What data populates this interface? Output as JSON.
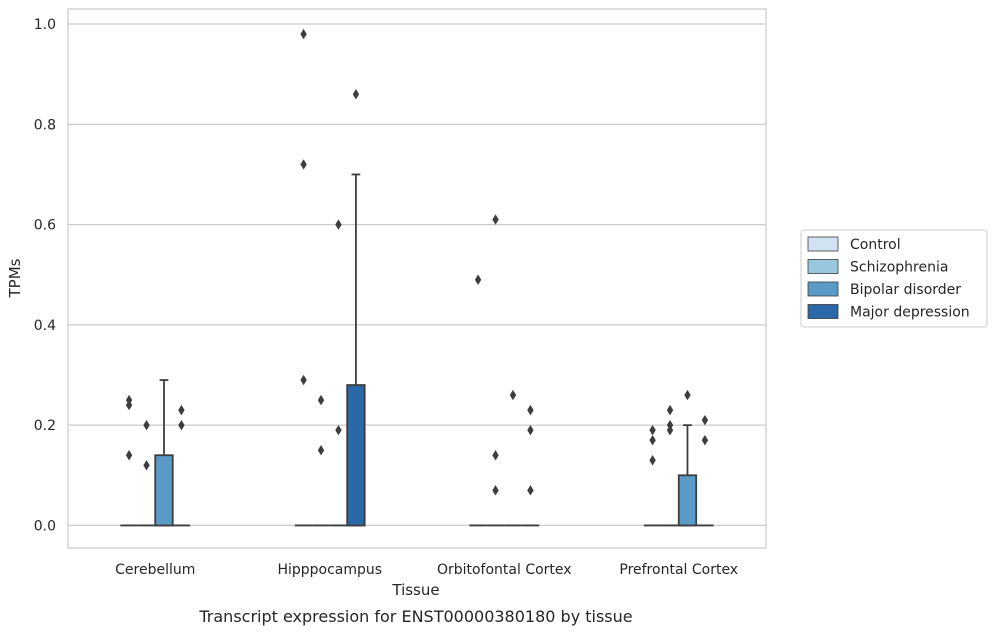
{
  "chart_data": {
    "type": "box",
    "title": "",
    "caption": "Transcript expression for ENST00000380180 by tissue",
    "xlabel": "Tissue",
    "ylabel": "TPMs",
    "ylim": [
      -0.045,
      1.03
    ],
    "yticks": [
      "0.0",
      "0.2",
      "0.4",
      "0.6",
      "0.8",
      "1.0"
    ],
    "categories": [
      "Cerebellum",
      "Hipppocampus",
      "Orbitofontal Cortex",
      "Prefrontal Cortex"
    ],
    "legend_position": "right",
    "grid": true,
    "series": [
      {
        "name": "Control",
        "color": "#d1e2f2",
        "boxes": [
          {
            "q1": 0,
            "median": 0,
            "q3": 0,
            "whisker_low": 0,
            "whisker_high": 0,
            "outliers": [
              0.14,
              0.24,
              0.25
            ]
          },
          {
            "q1": 0,
            "median": 0,
            "q3": 0,
            "whisker_low": 0,
            "whisker_high": 0,
            "outliers": [
              0.29,
              0.72,
              0.98
            ]
          },
          {
            "q1": 0,
            "median": 0,
            "q3": 0,
            "whisker_low": 0,
            "whisker_high": 0,
            "outliers": [
              0.49
            ]
          },
          {
            "q1": 0,
            "median": 0,
            "q3": 0,
            "whisker_low": 0,
            "whisker_high": 0,
            "outliers": [
              0.13,
              0.17,
              0.19
            ]
          }
        ]
      },
      {
        "name": "Schizophrenia",
        "color": "#9ac7e0",
        "boxes": [
          {
            "q1": 0,
            "median": 0,
            "q3": 0,
            "whisker_low": 0,
            "whisker_high": 0,
            "outliers": [
              0.12,
              0.2
            ]
          },
          {
            "q1": 0,
            "median": 0,
            "q3": 0,
            "whisker_low": 0,
            "whisker_high": 0,
            "outliers": [
              0.15,
              0.25
            ]
          },
          {
            "q1": 0,
            "median": 0,
            "q3": 0,
            "whisker_low": 0,
            "whisker_high": 0,
            "outliers": [
              0.07,
              0.14,
              0.61
            ]
          },
          {
            "q1": 0,
            "median": 0,
            "q3": 0,
            "whisker_low": 0,
            "whisker_high": 0,
            "outliers": [
              0.19,
              0.2,
              0.23
            ]
          }
        ]
      },
      {
        "name": "Bipolar disorder",
        "color": "#5a9ac6",
        "boxes": [
          {
            "q1": 0,
            "median": 0,
            "q3": 0.14,
            "whisker_low": 0,
            "whisker_high": 0.29,
            "outliers": []
          },
          {
            "q1": 0,
            "median": 0,
            "q3": 0,
            "whisker_low": 0,
            "whisker_high": 0,
            "outliers": [
              0.19,
              0.6
            ]
          },
          {
            "q1": 0,
            "median": 0,
            "q3": 0,
            "whisker_low": 0,
            "whisker_high": 0,
            "outliers": [
              0.26
            ]
          },
          {
            "q1": 0,
            "median": 0,
            "q3": 0.1,
            "whisker_low": 0,
            "whisker_high": 0.2,
            "outliers": [
              0.26
            ]
          }
        ]
      },
      {
        "name": "Major depression",
        "color": "#2a68a8",
        "boxes": [
          {
            "q1": 0,
            "median": 0,
            "q3": 0,
            "whisker_low": 0,
            "whisker_high": 0,
            "outliers": [
              0.2,
              0.23
            ]
          },
          {
            "q1": 0,
            "median": 0,
            "q3": 0.28,
            "whisker_low": 0,
            "whisker_high": 0.7,
            "outliers": [
              0.86
            ]
          },
          {
            "q1": 0,
            "median": 0,
            "q3": 0,
            "whisker_low": 0,
            "whisker_high": 0,
            "outliers": [
              0.07,
              0.19,
              0.23
            ]
          },
          {
            "q1": 0,
            "median": 0,
            "q3": 0,
            "whisker_low": 0,
            "whisker_high": 0,
            "outliers": [
              0.17,
              0.21
            ]
          }
        ]
      }
    ]
  }
}
